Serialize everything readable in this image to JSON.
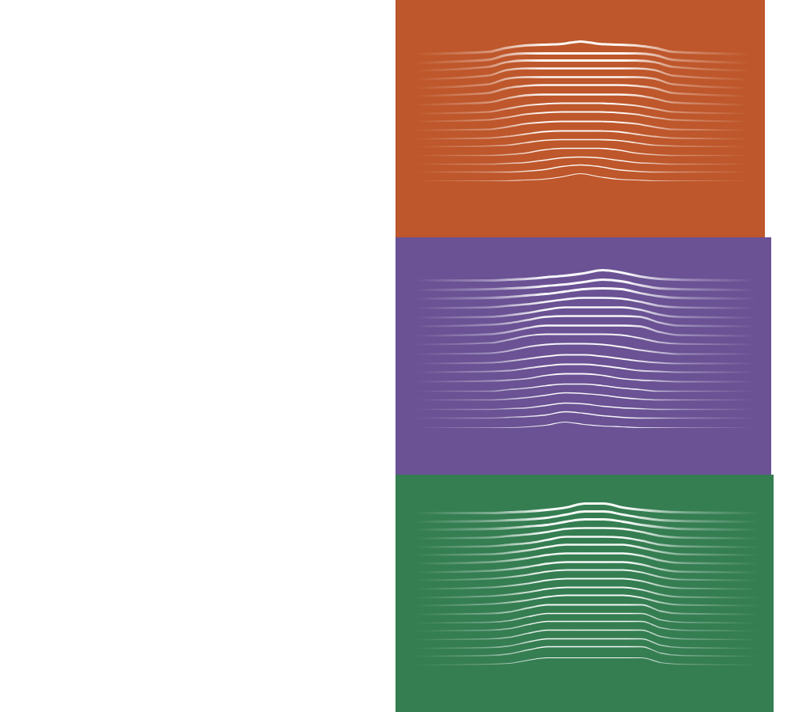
{
  "chart_data": [
    {
      "type": "line",
      "tick_labels": false,
      "xlim": [
        0,
        100
      ],
      "ylim": [
        0,
        30
      ],
      "xticks": [],
      "yticks": [],
      "x": [
        5,
        25,
        30,
        35,
        40,
        45,
        50,
        55,
        60,
        65,
        70,
        75,
        96
      ],
      "series": [
        {
          "color": "#ffffff",
          "values": [
            23.2,
            23.5,
            24.0,
            24.3,
            24.4,
            24.5,
            24.8,
            24.5,
            24.4,
            24.3,
            24.0,
            23.5,
            23.2
          ]
        },
        {
          "color": "#ffffff",
          "values": [
            22.1,
            22.5,
            23.1,
            23.3,
            23.3,
            23.3,
            23.3,
            23.3,
            23.3,
            23.3,
            23.1,
            22.5,
            22.1
          ]
        },
        {
          "color": "#ffffff",
          "values": [
            21.1,
            21.6,
            22.2,
            22.4,
            22.4,
            22.4,
            22.4,
            22.4,
            22.4,
            22.4,
            22.2,
            21.6,
            21.1
          ]
        },
        {
          "color": "#ffffff",
          "values": [
            20.0,
            20.5,
            21.2,
            21.4,
            21.4,
            21.4,
            21.4,
            21.4,
            21.4,
            21.4,
            21.2,
            20.5,
            20.0
          ]
        },
        {
          "color": "#ffffff",
          "values": [
            18.9,
            19.4,
            20.1,
            20.3,
            20.3,
            20.3,
            20.3,
            20.3,
            20.3,
            20.3,
            20.1,
            19.4,
            18.9
          ]
        },
        {
          "color": "#ffffff",
          "values": [
            17.9,
            18.3,
            18.9,
            19.2,
            19.3,
            19.3,
            19.3,
            19.3,
            19.3,
            19.2,
            18.9,
            18.3,
            17.9
          ]
        },
        {
          "color": "#ffffff",
          "values": [
            16.8,
            17.1,
            17.6,
            18.0,
            18.1,
            18.1,
            18.1,
            18.1,
            18.1,
            18.0,
            17.6,
            17.1,
            16.8
          ]
        },
        {
          "color": "#ffffff",
          "values": [
            15.7,
            15.9,
            16.3,
            16.7,
            16.9,
            17.0,
            17.0,
            17.0,
            16.9,
            16.7,
            16.3,
            15.9,
            15.7
          ]
        },
        {
          "color": "#ffffff",
          "values": [
            14.7,
            14.9,
            15.2,
            15.6,
            15.8,
            15.9,
            15.9,
            15.9,
            15.8,
            15.6,
            15.2,
            14.9,
            14.7
          ]
        },
        {
          "color": "#ffffff",
          "values": [
            13.6,
            13.7,
            14.0,
            14.4,
            14.6,
            14.7,
            14.7,
            14.7,
            14.6,
            14.4,
            14.0,
            13.7,
            13.6
          ]
        },
        {
          "color": "#ffffff",
          "values": [
            12.5,
            12.6,
            12.8,
            13.1,
            13.4,
            13.5,
            13.5,
            13.5,
            13.4,
            13.1,
            12.8,
            12.6,
            12.5
          ]
        },
        {
          "color": "#ffffff",
          "values": [
            11.5,
            11.6,
            11.7,
            12.0,
            12.3,
            12.4,
            12.4,
            12.4,
            12.3,
            12.0,
            11.7,
            11.6,
            11.5
          ]
        },
        {
          "color": "#ffffff",
          "values": [
            10.4,
            10.4,
            10.5,
            10.7,
            11.1,
            11.3,
            11.3,
            11.3,
            11.1,
            10.7,
            10.5,
            10.4,
            10.4
          ]
        },
        {
          "color": "#ffffff",
          "values": [
            9.3,
            9.3,
            9.4,
            9.5,
            9.8,
            10.1,
            10.2,
            10.1,
            9.8,
            9.5,
            9.4,
            9.3,
            9.3
          ]
        },
        {
          "color": "#ffffff",
          "values": [
            8.3,
            8.3,
            8.3,
            8.4,
            8.6,
            9.0,
            9.2,
            9.0,
            8.6,
            8.4,
            8.3,
            8.3,
            8.3
          ]
        },
        {
          "color": "#ffffff",
          "values": [
            7.2,
            7.2,
            7.2,
            7.3,
            7.4,
            7.7,
            8.1,
            7.7,
            7.4,
            7.3,
            7.2,
            7.2,
            7.2
          ]
        }
      ]
    },
    {
      "type": "line",
      "tick_labels": false,
      "xlim": [
        0,
        100
      ],
      "ylim": [
        0,
        30
      ],
      "xticks": [],
      "yticks": [],
      "x": [
        5,
        25,
        30,
        35,
        40,
        45,
        50,
        55,
        60,
        65,
        70,
        75,
        96
      ],
      "series": [
        {
          "color": "#ffffff",
          "values": [
            24.6,
            24.6,
            24.7,
            24.8,
            25.0,
            25.2,
            25.5,
            25.9,
            25.6,
            25.1,
            24.8,
            24.7,
            24.6
          ]
        },
        {
          "color": "#ffffff",
          "values": [
            23.4,
            23.5,
            23.6,
            23.7,
            23.9,
            24.1,
            24.4,
            24.7,
            24.5,
            24.0,
            23.6,
            23.5,
            23.4
          ]
        },
        {
          "color": "#ffffff",
          "values": [
            22.3,
            22.4,
            22.5,
            22.7,
            22.9,
            23.2,
            23.5,
            23.6,
            23.5,
            23.0,
            22.6,
            22.4,
            22.3
          ]
        },
        {
          "color": "#ffffff",
          "values": [
            21.1,
            21.2,
            21.4,
            21.6,
            21.9,
            22.2,
            22.4,
            22.4,
            22.3,
            21.9,
            21.4,
            21.2,
            21.1
          ]
        },
        {
          "color": "#ffffff",
          "values": [
            19.9,
            20.0,
            20.2,
            20.5,
            20.9,
            21.2,
            21.2,
            21.2,
            21.2,
            20.9,
            20.3,
            20.0,
            19.9
          ]
        },
        {
          "color": "#ffffff",
          "values": [
            18.8,
            19.0,
            19.2,
            19.6,
            20.0,
            20.1,
            20.1,
            20.1,
            20.1,
            20.0,
            19.3,
            18.9,
            18.8
          ]
        },
        {
          "color": "#ffffff",
          "values": [
            17.6,
            17.8,
            18.1,
            18.6,
            18.9,
            18.9,
            18.9,
            18.9,
            18.9,
            18.8,
            18.1,
            17.7,
            17.6
          ]
        },
        {
          "color": "#ffffff",
          "values": [
            16.5,
            16.7,
            17.1,
            17.6,
            17.8,
            17.8,
            17.8,
            17.8,
            17.7,
            17.3,
            16.8,
            16.6,
            16.5
          ]
        },
        {
          "color": "#ffffff",
          "values": [
            15.3,
            15.4,
            15.7,
            16.2,
            16.5,
            16.6,
            16.6,
            16.5,
            16.2,
            15.8,
            15.5,
            15.3,
            15.3
          ]
        },
        {
          "color": "#ffffff",
          "values": [
            14.1,
            14.2,
            14.4,
            14.7,
            15.0,
            15.2,
            15.2,
            15.0,
            14.7,
            14.4,
            14.2,
            14.1,
            14.1
          ]
        },
        {
          "color": "#ffffff",
          "values": [
            13.0,
            13.1,
            13.2,
            13.5,
            13.8,
            14.0,
            14.0,
            13.8,
            13.5,
            13.2,
            13.1,
            13.0,
            13.0
          ]
        },
        {
          "color": "#ffffff",
          "values": [
            11.8,
            11.9,
            12.0,
            12.2,
            12.6,
            12.8,
            12.8,
            12.6,
            12.2,
            12.0,
            11.9,
            11.8,
            11.8
          ]
        },
        {
          "color": "#ffffff",
          "values": [
            10.6,
            10.6,
            10.8,
            11.0,
            11.3,
            11.5,
            11.5,
            11.3,
            11.0,
            10.8,
            10.6,
            10.6,
            10.6
          ]
        },
        {
          "color": "#ffffff",
          "values": [
            9.5,
            9.5,
            9.6,
            9.8,
            10.1,
            10.4,
            10.3,
            10.1,
            9.8,
            9.6,
            9.5,
            9.5,
            9.5
          ]
        },
        {
          "color": "#ffffff",
          "values": [
            8.3,
            8.3,
            8.4,
            8.5,
            8.8,
            9.1,
            9.0,
            8.7,
            8.5,
            8.4,
            8.3,
            8.3,
            8.3
          ]
        },
        {
          "color": "#ffffff",
          "values": [
            7.2,
            7.2,
            7.3,
            7.4,
            7.6,
            8.0,
            7.8,
            7.5,
            7.3,
            7.2,
            7.2,
            7.2,
            7.2
          ]
        },
        {
          "color": "#ffffff",
          "values": [
            6.0,
            6.0,
            6.0,
            6.1,
            6.3,
            6.7,
            6.4,
            6.2,
            6.1,
            6.0,
            6.0,
            6.0,
            6.0
          ]
        }
      ]
    },
    {
      "type": "line",
      "tick_labels": false,
      "xlim": [
        0,
        100
      ],
      "ylim": [
        0,
        30
      ],
      "xticks": [],
      "yticks": [],
      "x": [
        5,
        25,
        30,
        35,
        40,
        45,
        50,
        55,
        60,
        65,
        70,
        75,
        96
      ],
      "series": [
        {
          "color": "#ffffff",
          "values": [
            25.2,
            25.2,
            25.3,
            25.4,
            25.6,
            25.9,
            26.4,
            26.4,
            25.9,
            25.6,
            25.4,
            25.3,
            25.2
          ]
        },
        {
          "color": "#ffffff",
          "values": [
            24.1,
            24.2,
            24.3,
            24.4,
            24.6,
            25.0,
            25.4,
            25.4,
            25.0,
            24.6,
            24.3,
            24.2,
            24.1
          ]
        },
        {
          "color": "#ffffff",
          "values": [
            23.1,
            23.2,
            23.3,
            23.5,
            23.7,
            24.1,
            24.4,
            24.4,
            24.1,
            23.7,
            23.4,
            23.2,
            23.1
          ]
        },
        {
          "color": "#ffffff",
          "values": [
            22.0,
            22.1,
            22.3,
            22.5,
            22.8,
            23.2,
            23.3,
            23.3,
            23.2,
            22.8,
            22.3,
            22.1,
            22.0
          ]
        },
        {
          "color": "#ffffff",
          "values": [
            20.9,
            21.0,
            21.2,
            21.4,
            21.8,
            22.2,
            22.2,
            22.2,
            22.1,
            21.7,
            21.2,
            21.0,
            20.9
          ]
        },
        {
          "color": "#ffffff",
          "values": [
            19.9,
            20.0,
            20.2,
            20.5,
            20.9,
            21.2,
            21.2,
            21.2,
            21.2,
            20.8,
            20.3,
            20.0,
            19.9
          ]
        },
        {
          "color": "#ffffff",
          "values": [
            18.8,
            19.0,
            19.2,
            19.5,
            19.9,
            20.1,
            20.1,
            20.1,
            20.1,
            19.8,
            19.2,
            18.9,
            18.8
          ]
        },
        {
          "color": "#ffffff",
          "values": [
            17.7,
            17.9,
            18.1,
            18.4,
            18.8,
            19.0,
            19.0,
            19.0,
            19.0,
            18.7,
            18.1,
            17.8,
            17.7
          ]
        },
        {
          "color": "#ffffff",
          "values": [
            16.7,
            16.9,
            17.1,
            17.4,
            17.8,
            18.0,
            18.0,
            18.0,
            18.0,
            17.7,
            17.1,
            16.8,
            16.7
          ]
        },
        {
          "color": "#ffffff",
          "values": [
            15.6,
            15.8,
            16.0,
            16.3,
            16.7,
            16.9,
            16.9,
            16.9,
            16.9,
            16.6,
            16.0,
            15.7,
            15.6
          ]
        },
        {
          "color": "#ffffff",
          "values": [
            14.5,
            14.7,
            14.9,
            15.2,
            15.6,
            15.8,
            15.8,
            15.8,
            15.8,
            15.5,
            14.9,
            14.6,
            14.5
          ]
        },
        {
          "color": "#ffffff",
          "values": [
            13.5,
            13.7,
            13.9,
            14.2,
            14.6,
            14.8,
            14.8,
            14.8,
            14.8,
            14.5,
            13.9,
            13.6,
            13.5
          ]
        },
        {
          "color": "#ffffff",
          "values": [
            12.4,
            12.5,
            12.7,
            13.2,
            13.6,
            13.6,
            13.6,
            13.6,
            13.6,
            13.6,
            12.8,
            12.5,
            12.4
          ]
        },
        {
          "color": "#ffffff",
          "values": [
            11.3,
            11.4,
            11.6,
            12.1,
            12.5,
            12.5,
            12.5,
            12.5,
            12.5,
            12.5,
            11.7,
            11.4,
            11.3
          ]
        },
        {
          "color": "#ffffff",
          "values": [
            10.3,
            10.4,
            10.6,
            11.1,
            11.5,
            11.5,
            11.5,
            11.5,
            11.5,
            11.5,
            10.7,
            10.4,
            10.3
          ]
        },
        {
          "color": "#ffffff",
          "values": [
            9.2,
            9.3,
            9.5,
            10.0,
            10.4,
            10.4,
            10.4,
            10.4,
            10.4,
            10.4,
            9.6,
            9.3,
            9.2
          ]
        },
        {
          "color": "#ffffff",
          "values": [
            8.1,
            8.2,
            8.4,
            8.9,
            9.3,
            9.3,
            9.3,
            9.3,
            9.3,
            9.3,
            8.5,
            8.2,
            8.1
          ]
        },
        {
          "color": "#ffffff",
          "values": [
            7.1,
            7.2,
            7.4,
            7.9,
            8.3,
            8.3,
            8.3,
            8.3,
            8.3,
            8.3,
            7.5,
            7.2,
            7.1
          ]
        },
        {
          "color": "#ffffff",
          "values": [
            6.0,
            6.1,
            6.2,
            6.6,
            6.9,
            6.9,
            6.9,
            6.9,
            6.9,
            6.9,
            6.3,
            6.1,
            6.0
          ]
        }
      ]
    }
  ]
}
